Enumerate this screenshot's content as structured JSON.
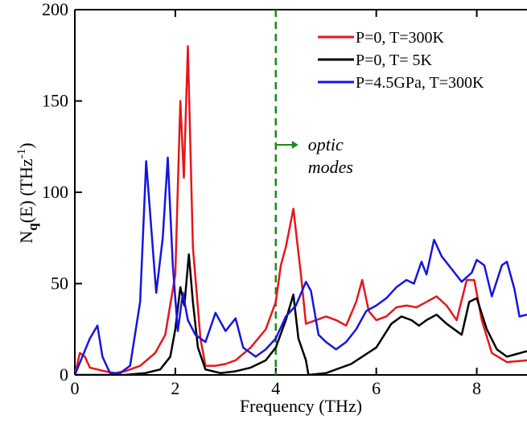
{
  "chart_data": {
    "type": "line",
    "xlabel": "Frequency (THz)",
    "ylabel": {
      "base": "N",
      "sub": "q",
      "rest": "(E) (THz",
      "sup": "-1",
      "end": ")"
    },
    "annotation": {
      "lines": [
        "optic",
        "modes"
      ],
      "x": 4,
      "color": "#1a8a1a"
    },
    "xlim": [
      0,
      9
    ],
    "ylim": [
      0,
      200
    ],
    "xticks": [
      0,
      2,
      4,
      6,
      8
    ],
    "yticks": [
      0,
      50,
      100,
      150,
      200
    ],
    "legend": "upper right",
    "series": [
      {
        "name": "P=0, T=300K",
        "color": "#e8161b",
        "x": [
          0,
          0.1,
          0.2,
          0.3,
          0.6,
          0.8,
          1.0,
          1.3,
          1.6,
          1.8,
          2.0,
          2.1,
          2.17,
          2.25,
          2.35,
          2.5,
          2.6,
          2.8,
          3.0,
          3.2,
          3.5,
          3.8,
          4.0,
          4.1,
          4.2,
          4.35,
          4.5,
          4.6,
          4.8,
          5.0,
          5.2,
          5.4,
          5.6,
          5.72,
          5.85,
          6.0,
          6.2,
          6.4,
          6.6,
          6.8,
          7.0,
          7.2,
          7.4,
          7.6,
          7.8,
          7.95,
          8.1,
          8.3,
          8.6,
          9.0
        ],
        "values": [
          0,
          12,
          10,
          4,
          2,
          1,
          2,
          5,
          12,
          22,
          55,
          150,
          108,
          180,
          70,
          20,
          5,
          5,
          6,
          8,
          15,
          25,
          40,
          60,
          70,
          91,
          55,
          28,
          30,
          32,
          30,
          27,
          40,
          52,
          35,
          30,
          32,
          37,
          38,
          37,
          40,
          43,
          38,
          30,
          52,
          52,
          30,
          12,
          7,
          8
        ]
      },
      {
        "name": "P=0, T= 5K",
        "color": "#000000",
        "x": [
          0,
          0.5,
          1.0,
          1.4,
          1.7,
          1.9,
          2.0,
          2.1,
          2.18,
          2.27,
          2.35,
          2.45,
          2.6,
          2.9,
          3.2,
          3.5,
          3.8,
          4.0,
          4.2,
          4.35,
          4.45,
          4.6,
          4.65,
          5.0,
          5.5,
          6.0,
          6.3,
          6.5,
          6.7,
          6.85,
          7.0,
          7.2,
          7.4,
          7.7,
          7.85,
          8.0,
          8.2,
          8.4,
          8.6,
          9.0
        ],
        "values": [
          0,
          0,
          0,
          1,
          3,
          10,
          25,
          48,
          38,
          66,
          40,
          15,
          3,
          1,
          2,
          4,
          8,
          15,
          30,
          44,
          20,
          8,
          0,
          1,
          6,
          15,
          28,
          32,
          30,
          27,
          30,
          33,
          28,
          22,
          40,
          42,
          25,
          14,
          10,
          13
        ]
      },
      {
        "name": "P=4.5GPa, T=300K",
        "color": "#1515e0",
        "x": [
          0,
          0.15,
          0.3,
          0.45,
          0.55,
          0.7,
          0.9,
          1.1,
          1.3,
          1.42,
          1.55,
          1.62,
          1.75,
          1.85,
          1.95,
          2.05,
          2.15,
          2.25,
          2.4,
          2.6,
          2.8,
          3.0,
          3.2,
          3.35,
          3.6,
          3.8,
          4.0,
          4.2,
          4.4,
          4.6,
          4.7,
          4.85,
          5.0,
          5.2,
          5.4,
          5.6,
          5.8,
          6.0,
          6.2,
          6.4,
          6.6,
          6.75,
          6.9,
          7.0,
          7.15,
          7.3,
          7.5,
          7.7,
          7.9,
          8.0,
          8.15,
          8.3,
          8.5,
          8.6,
          8.75,
          8.85,
          9.0
        ],
        "values": [
          0,
          10,
          20,
          27,
          10,
          1,
          1,
          5,
          40,
          117,
          70,
          45,
          75,
          119,
          60,
          24,
          45,
          30,
          22,
          18,
          34,
          24,
          31,
          15,
          10,
          14,
          20,
          32,
          38,
          51,
          46,
          22,
          18,
          14,
          18,
          25,
          35,
          38,
          42,
          48,
          52,
          50,
          62,
          55,
          74,
          65,
          58,
          51,
          56,
          63,
          60,
          43,
          60,
          62,
          47,
          32,
          33
        ]
      }
    ]
  }
}
